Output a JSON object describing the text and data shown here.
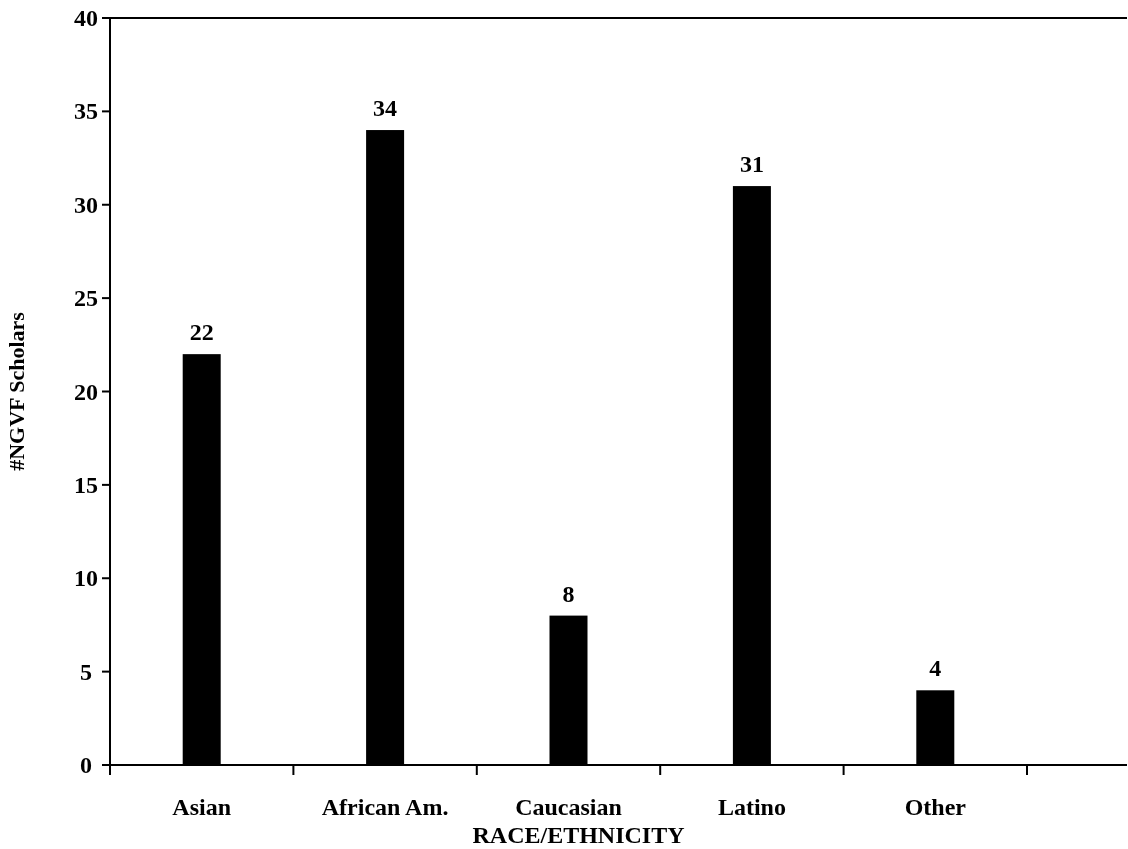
{
  "chart_data": {
    "type": "bar",
    "xlabel": "RACE/ETHNICITY",
    "ylabel": "#NGVF Scholars",
    "categories": [
      "Asian",
      "African Am.",
      "Caucasian",
      "Latino",
      "Other"
    ],
    "values": [
      22,
      34,
      8,
      31,
      4
    ],
    "color": "#000000",
    "ylim": [
      0,
      40
    ],
    "yticks": [
      0,
      5,
      10,
      15,
      20,
      25,
      30,
      35,
      40
    ],
    "data_labels": true
  }
}
